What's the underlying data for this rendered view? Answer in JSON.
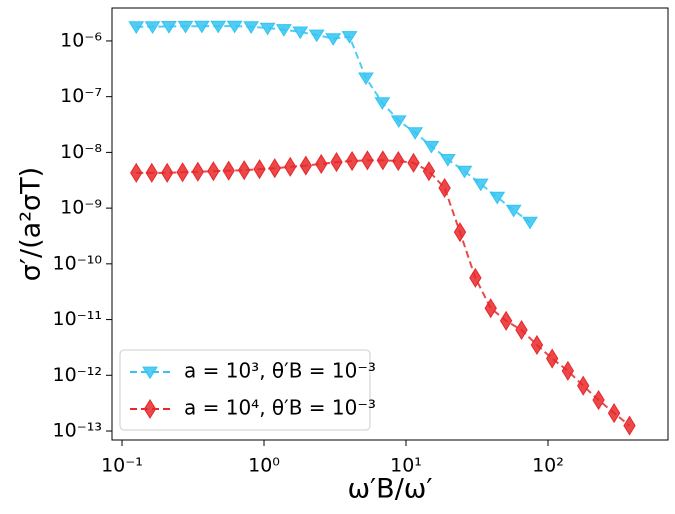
{
  "chart_data": {
    "type": "line",
    "xlabel": "ω′B/ω′",
    "ylabel": "σ′/(a²σT)",
    "xscale": "log",
    "yscale": "log",
    "xlim": [
      0.085,
      700
    ],
    "ylim": [
      6.9e-14,
      3.9e-06
    ],
    "xticks": [
      {
        "value": 0.1,
        "label": "10⁻¹"
      },
      {
        "value": 1,
        "label": "10⁰"
      },
      {
        "value": 10,
        "label": "10¹"
      },
      {
        "value": 100,
        "label": "10²"
      }
    ],
    "yticks": [
      {
        "value": 1e-13,
        "label": "10⁻¹³"
      },
      {
        "value": 1e-12,
        "label": "10⁻¹²"
      },
      {
        "value": 1e-11,
        "label": "10⁻¹¹"
      },
      {
        "value": 1e-10,
        "label": "10⁻¹⁰"
      },
      {
        "value": 1e-09,
        "label": "10⁻⁹"
      },
      {
        "value": 1e-08,
        "label": "10⁻⁸"
      },
      {
        "value": 1e-07,
        "label": "10⁻⁷"
      },
      {
        "value": 1e-06,
        "label": "10⁻⁶"
      }
    ],
    "legend": "lower left",
    "series": [
      {
        "name": "a = 10³, θ′B = 10⁻³",
        "color": "#33c4f2",
        "marker": "triangle-down",
        "x": [
          0.126,
          0.164,
          0.214,
          0.28,
          0.365,
          0.476,
          0.621,
          0.811,
          1.06,
          1.38,
          1.8,
          2.35,
          3.07,
          4.0,
          5.22,
          6.81,
          8.89,
          11.6,
          15.1,
          19.7,
          25.8,
          33.6,
          43.9,
          57.3,
          74.7
        ],
        "values": [
          1.8e-06,
          1.8e-06,
          1.82e-06,
          1.83e-06,
          1.84e-06,
          1.84e-06,
          1.84e-06,
          1.8e-06,
          1.7e-06,
          1.6e-06,
          1.45e-06,
          1.28e-06,
          1.1e-06,
          1.2e-06,
          2.17e-07,
          7.8e-08,
          3.7e-08,
          2.26e-08,
          1.29e-08,
          7.5e-09,
          4.6e-09,
          2.7e-09,
          1.57e-09,
          9.2e-10,
          5.6e-10
        ]
      },
      {
        "name": "a = 10⁴, θ′B = 10⁻³",
        "color": "#e8282a",
        "marker": "diamond",
        "x": [
          0.126,
          0.162,
          0.208,
          0.267,
          0.342,
          0.44,
          0.564,
          0.725,
          0.93,
          1.19,
          1.53,
          1.97,
          2.53,
          3.24,
          4.17,
          5.35,
          6.87,
          8.82,
          11.3,
          14.5,
          18.7,
          24.0,
          30.8,
          39.5,
          50.7,
          65.1,
          83.6,
          107,
          138,
          177,
          227,
          292,
          375
        ],
        "values": [
          4.3e-09,
          4.3e-09,
          4.3e-09,
          4.4e-09,
          4.5e-09,
          4.6e-09,
          4.7e-09,
          4.8e-09,
          5e-09,
          5.2e-09,
          5.5e-09,
          5.8e-09,
          6.2e-09,
          6.7e-09,
          7e-09,
          7.2e-09,
          7.2e-09,
          7e-09,
          6.5e-09,
          4.6e-09,
          2.3e-09,
          3.7e-10,
          5.6e-11,
          1.6e-11,
          9.5e-12,
          6.5e-12,
          3.5e-12,
          2e-12,
          1.2e-12,
          6.5e-13,
          3.6e-13,
          2.1e-13,
          1.25e-13
        ]
      }
    ]
  }
}
